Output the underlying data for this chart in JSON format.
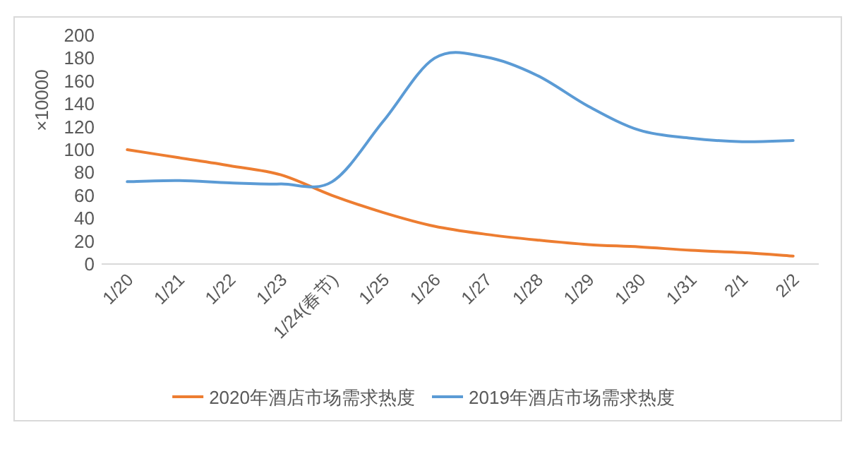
{
  "chart_data": {
    "type": "line",
    "ylabel": "×10000",
    "categories": [
      "1/20",
      "1/21",
      "1/22",
      "1/23",
      "1/24(春节)",
      "1/25",
      "1/26",
      "1/27",
      "1/28",
      "1/29",
      "1/30",
      "1/31",
      "2/1",
      "2/2"
    ],
    "series": [
      {
        "name": "2020年酒店市场需求热度",
        "color": "#ed7d31",
        "values": [
          100,
          93,
          86,
          78,
          60,
          45,
          33,
          26,
          21,
          17,
          15,
          12,
          10,
          7
        ]
      },
      {
        "name": "2019年酒店市场需求热度",
        "color": "#5b9bd5",
        "values": [
          72,
          73,
          71,
          70,
          72,
          125,
          180,
          181,
          165,
          138,
          117,
          110,
          107,
          108
        ]
      }
    ],
    "ylim": [
      0,
      200
    ],
    "yticks": [
      0,
      20,
      40,
      60,
      80,
      100,
      120,
      140,
      160,
      180,
      200
    ],
    "grid": false,
    "legend": "bottom",
    "marker": "none",
    "line_style": "solid"
  }
}
